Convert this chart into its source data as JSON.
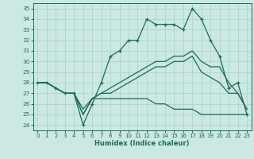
{
  "xlabel": "Humidex (Indice chaleur)",
  "xlim": [
    -0.5,
    23.5
  ],
  "ylim": [
    23.5,
    35.5
  ],
  "yticks": [
    24,
    25,
    26,
    27,
    28,
    29,
    30,
    31,
    32,
    33,
    34,
    35
  ],
  "xticks": [
    0,
    1,
    2,
    3,
    4,
    5,
    6,
    7,
    8,
    9,
    10,
    11,
    12,
    13,
    14,
    15,
    16,
    17,
    18,
    19,
    20,
    21,
    22,
    23
  ],
  "bg_color": "#cce8e3",
  "grid_color": "#b0d8d0",
  "line_color": "#1a6b5a",
  "series_main": [
    28,
    28,
    27.5,
    27,
    27,
    24,
    26,
    28,
    30.5,
    31,
    32,
    32,
    34,
    33.5,
    33.5,
    33.5,
    33,
    35,
    34,
    32,
    30.5,
    27.5,
    28,
    25
  ],
  "series_up": [
    28,
    28,
    27.5,
    27,
    27,
    25,
    26.5,
    27,
    27.5,
    28,
    28.5,
    29,
    29.5,
    30,
    30,
    30.5,
    30.5,
    31,
    30,
    29.5,
    29.5,
    28,
    27,
    25.5
  ],
  "series_mid": [
    28,
    28,
    27.5,
    27,
    27,
    25,
    26.5,
    27,
    27,
    27.5,
    28,
    28.5,
    29,
    29.5,
    29.5,
    30,
    30,
    30.5,
    29,
    28.5,
    28,
    27,
    27,
    25.5
  ],
  "series_low": [
    28,
    28,
    27.5,
    27,
    27,
    25.5,
    26.5,
    26.5,
    26.5,
    26.5,
    26.5,
    26.5,
    26.5,
    26,
    26,
    25.5,
    25.5,
    25.5,
    25,
    25,
    25,
    25,
    25,
    25
  ]
}
